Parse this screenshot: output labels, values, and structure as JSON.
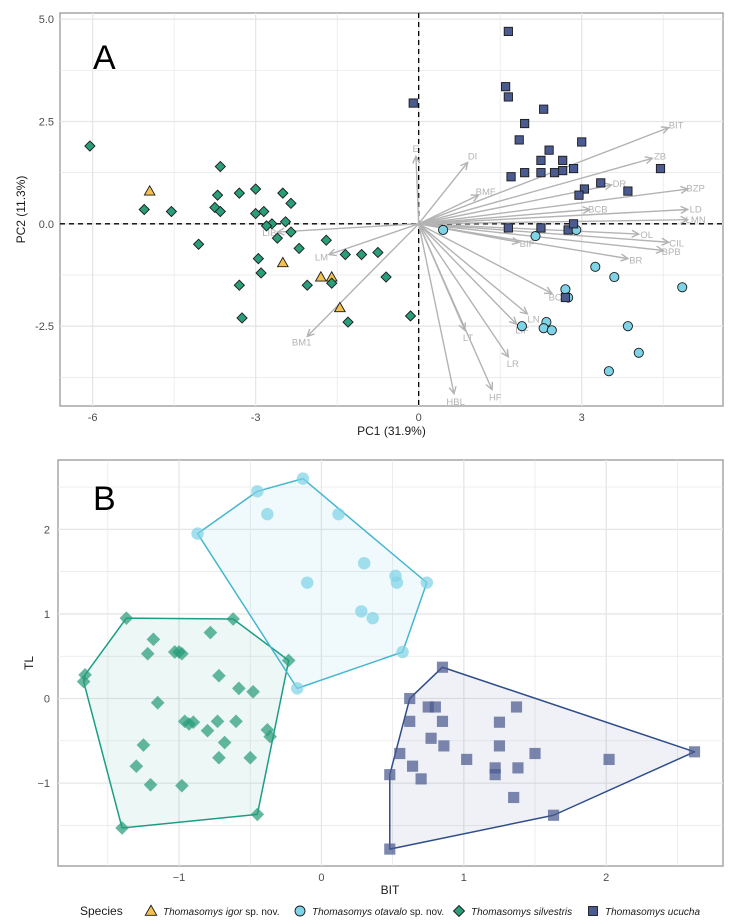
{
  "legend": {
    "title": "Species",
    "entries": [
      {
        "key": "igor",
        "italic": "Thomasomys igor",
        "suffix": " sp. nov."
      },
      {
        "key": "otavalo",
        "italic": "Thomasomys otavalo",
        "suffix": " sp. nov."
      },
      {
        "key": "silvestris",
        "italic": "Thomasomys silvestris",
        "suffix": ""
      },
      {
        "key": "ucucha",
        "italic": "Thomasomys ucucha",
        "suffix": ""
      }
    ]
  },
  "colors": {
    "igor": "#f2c14e",
    "otavalo": "#7fd3e6",
    "silvestris": "#2a9d7a",
    "ucucha": "#4b5a8f",
    "silvestris_hull": "#1a9e84",
    "otavalo_hull": "#45b7cf",
    "ucucha_hull": "#2f4d8a",
    "vector": "#b3b3b3"
  },
  "chart_data": [
    {
      "type": "scatter",
      "panel_label": "A",
      "xlabel": "PC1 (31.9%)",
      "ylabel": "PC2 (11.3%)",
      "xlim": [
        -6.6,
        5.6
      ],
      "ylim": [
        -4.45,
        5.15
      ],
      "xticks": [
        -6,
        -3,
        0,
        3
      ],
      "yticks": [
        -2.5,
        0.0,
        2.5,
        5.0
      ],
      "ytick_labels": [
        "-2.5",
        "0.0",
        "2.5",
        "5.0"
      ],
      "grid": true,
      "reference_lines": {
        "x": 0,
        "y": 0
      },
      "series": [
        {
          "key": "igor",
          "marker": "triangle",
          "points": [
            [
              -4.95,
              0.8
            ],
            [
              -2.5,
              -0.95
            ],
            [
              -1.8,
              -1.3
            ],
            [
              -1.6,
              -1.3
            ],
            [
              -1.45,
              -2.05
            ]
          ]
        },
        {
          "key": "silvestris",
          "marker": "diamond",
          "points": [
            [
              -6.05,
              1.9
            ],
            [
              -5.05,
              0.35
            ],
            [
              -4.55,
              0.3
            ],
            [
              -3.65,
              1.4
            ],
            [
              -3.7,
              0.7
            ],
            [
              -3.75,
              0.4
            ],
            [
              -3.65,
              0.3
            ],
            [
              -3.3,
              0.75
            ],
            [
              -3.0,
              0.85
            ],
            [
              -3.0,
              0.25
            ],
            [
              -2.85,
              0.3
            ],
            [
              -2.5,
              0.75
            ],
            [
              -2.35,
              0.5
            ],
            [
              -2.7,
              0.0
            ],
            [
              -2.35,
              -0.2
            ],
            [
              -2.45,
              0.05
            ],
            [
              -2.8,
              -0.05
            ],
            [
              -2.6,
              -0.35
            ],
            [
              -2.2,
              -0.6
            ],
            [
              -4.05,
              -0.5
            ],
            [
              -2.95,
              -0.85
            ],
            [
              -2.9,
              -1.2
            ],
            [
              -3.3,
              -1.5
            ],
            [
              -3.25,
              -2.3
            ],
            [
              -2.05,
              -1.5
            ],
            [
              -1.7,
              -0.4
            ],
            [
              -1.6,
              -1.45
            ],
            [
              -1.35,
              -0.75
            ],
            [
              -1.3,
              -2.4
            ],
            [
              -1.05,
              -0.75
            ],
            [
              -0.75,
              -0.7
            ],
            [
              -0.6,
              -1.3
            ],
            [
              -0.15,
              -2.25
            ]
          ]
        },
        {
          "key": "otavalo",
          "marker": "circle",
          "points": [
            [
              0.45,
              -0.15
            ],
            [
              1.9,
              -2.5
            ],
            [
              2.35,
              -2.4
            ],
            [
              2.3,
              -2.55
            ],
            [
              2.45,
              -2.6
            ],
            [
              2.15,
              -0.3
            ],
            [
              2.9,
              -0.15
            ],
            [
              2.7,
              -1.6
            ],
            [
              2.75,
              -1.8
            ],
            [
              3.25,
              -1.05
            ],
            [
              3.6,
              -1.3
            ],
            [
              3.85,
              -2.5
            ],
            [
              4.05,
              -3.15
            ],
            [
              3.5,
              -3.6
            ],
            [
              4.85,
              -1.55
            ]
          ]
        },
        {
          "key": "ucucha",
          "marker": "square",
          "points": [
            [
              1.65,
              4.7
            ],
            [
              -0.1,
              2.95
            ],
            [
              1.6,
              3.35
            ],
            [
              1.65,
              3.1
            ],
            [
              2.3,
              2.8
            ],
            [
              1.95,
              2.45
            ],
            [
              1.85,
              2.05
            ],
            [
              2.4,
              1.8
            ],
            [
              2.25,
              1.55
            ],
            [
              3.0,
              2.0
            ],
            [
              2.65,
              1.55
            ],
            [
              1.95,
              1.25
            ],
            [
              1.7,
              1.15
            ],
            [
              2.65,
              1.3
            ],
            [
              2.5,
              1.25
            ],
            [
              2.25,
              1.25
            ],
            [
              2.85,
              1.35
            ],
            [
              3.05,
              0.85
            ],
            [
              3.35,
              1.0
            ],
            [
              4.45,
              1.35
            ],
            [
              3.85,
              0.8
            ],
            [
              2.95,
              0.7
            ],
            [
              1.65,
              -0.1
            ],
            [
              2.25,
              -0.1
            ],
            [
              2.75,
              -0.15
            ],
            [
              2.85,
              0.0
            ],
            [
              2.7,
              -1.8
            ]
          ]
        }
      ],
      "vectors": [
        {
          "label": "BIT",
          "x": 4.6,
          "y": 2.35
        },
        {
          "label": "ZB",
          "x": 4.3,
          "y": 1.6
        },
        {
          "label": "BZP",
          "x": 4.95,
          "y": 0.85
        },
        {
          "label": "LD",
          "x": 4.95,
          "y": 0.35
        },
        {
          "label": "LMN",
          "x": 4.95,
          "y": 0.1
        },
        {
          "label": "DR",
          "x": 3.55,
          "y": 0.95
        },
        {
          "label": "BCB",
          "x": 3.15,
          "y": 0.35
        },
        {
          "label": "OL",
          "x": 4.05,
          "y": -0.25
        },
        {
          "label": "CIL",
          "x": 4.6,
          "y": -0.45
        },
        {
          "label": "BPB",
          "x": 4.5,
          "y": -0.65
        },
        {
          "label": "BR",
          "x": 3.85,
          "y": -0.85
        },
        {
          "label": "BMF",
          "x": 1.1,
          "y": 0.7
        },
        {
          "label": "DI",
          "x": 0.9,
          "y": 1.5
        },
        {
          "label": "E",
          "x": -0.05,
          "y": 1.65
        },
        {
          "label": "BIF",
          "x": 1.85,
          "y": -0.45
        },
        {
          "label": "BCO",
          "x": 2.45,
          "y": -1.7
        },
        {
          "label": "LN",
          "x": 2.0,
          "y": -2.2
        },
        {
          "label": "LIF",
          "x": 1.8,
          "y": -2.45
        },
        {
          "label": "LR",
          "x": 1.65,
          "y": -3.25
        },
        {
          "label": "LT",
          "x": 0.85,
          "y": -2.6
        },
        {
          "label": "HF",
          "x": 1.35,
          "y": -4.05
        },
        {
          "label": "HBL",
          "x": 0.65,
          "y": -4.15
        },
        {
          "label": "LIB",
          "x": -2.6,
          "y": -0.2
        },
        {
          "label": "LM",
          "x": -1.65,
          "y": -0.75
        },
        {
          "label": "BM1",
          "x": -2.05,
          "y": -2.75
        }
      ]
    },
    {
      "type": "scatter",
      "panel_label": "B",
      "xlabel": "BIT",
      "ylabel": "TL",
      "xlim": [
        -1.85,
        2.82
      ],
      "ylim": [
        -1.98,
        2.82
      ],
      "xticks": [
        -1,
        0,
        1,
        2
      ],
      "yticks": [
        -1,
        0,
        1,
        2
      ],
      "grid": true,
      "series": [
        {
          "key": "silvestris",
          "marker": "diamond",
          "hull": true,
          "points": [
            [
              -1.37,
              0.95
            ],
            [
              -0.62,
              0.94
            ],
            [
              -1.66,
              0.28
            ],
            [
              -1.67,
              0.2
            ],
            [
              -0.23,
              0.45
            ],
            [
              -1.03,
              0.55
            ],
            [
              -1.18,
              0.7
            ],
            [
              -1.22,
              0.53
            ],
            [
              -0.78,
              0.78
            ],
            [
              -0.72,
              0.27
            ],
            [
              -0.58,
              0.12
            ],
            [
              -0.48,
              0.08
            ],
            [
              -0.68,
              -0.52
            ],
            [
              -1.0,
              0.55
            ],
            [
              -0.98,
              0.53
            ],
            [
              -1.15,
              -0.05
            ],
            [
              -0.96,
              -0.27
            ],
            [
              -0.93,
              -0.3
            ],
            [
              -0.9,
              -0.28
            ],
            [
              -0.73,
              -0.27
            ],
            [
              -0.6,
              -0.27
            ],
            [
              -0.38,
              -0.37
            ],
            [
              -0.36,
              -0.45
            ],
            [
              -0.8,
              -0.38
            ],
            [
              -0.5,
              -0.7
            ],
            [
              -0.72,
              -0.7
            ],
            [
              -1.25,
              -0.55
            ],
            [
              -1.3,
              -0.8
            ],
            [
              -1.2,
              -1.02
            ],
            [
              -0.98,
              -1.03
            ],
            [
              -0.45,
              -1.37
            ],
            [
              -1.4,
              -1.53
            ]
          ]
        },
        {
          "key": "otavalo",
          "marker": "circle",
          "hull": true,
          "points": [
            [
              -0.45,
              2.45
            ],
            [
              -0.13,
              2.6
            ],
            [
              -0.38,
              2.18
            ],
            [
              -0.87,
              1.95
            ],
            [
              0.12,
              2.18
            ],
            [
              0.3,
              1.6
            ],
            [
              -0.1,
              1.37
            ],
            [
              0.52,
              1.45
            ],
            [
              0.53,
              1.37
            ],
            [
              0.74,
              1.37
            ],
            [
              0.28,
              1.03
            ],
            [
              0.36,
              0.95
            ],
            [
              0.57,
              0.55
            ],
            [
              -0.17,
              0.12
            ]
          ]
        },
        {
          "key": "ucucha",
          "marker": "square",
          "hull": true,
          "points": [
            [
              0.85,
              0.37
            ],
            [
              0.62,
              0.0
            ],
            [
              0.75,
              -0.1
            ],
            [
              0.8,
              -0.1
            ],
            [
              0.62,
              -0.27
            ],
            [
              0.85,
              -0.27
            ],
            [
              0.77,
              -0.47
            ],
            [
              0.86,
              -0.56
            ],
            [
              1.25,
              -0.28
            ],
            [
              1.37,
              -0.1
            ],
            [
              1.25,
              -0.56
            ],
            [
              1.5,
              -0.65
            ],
            [
              0.55,
              -0.65
            ],
            [
              1.02,
              -0.72
            ],
            [
              1.22,
              -0.9
            ],
            [
              1.22,
              -0.82
            ],
            [
              1.38,
              -0.82
            ],
            [
              0.64,
              -0.8
            ],
            [
              0.48,
              -0.9
            ],
            [
              0.7,
              -0.95
            ],
            [
              1.35,
              -1.17
            ],
            [
              1.63,
              -1.38
            ],
            [
              2.02,
              -0.72
            ],
            [
              2.62,
              -0.63
            ],
            [
              0.48,
              -1.78
            ]
          ]
        }
      ]
    }
  ]
}
